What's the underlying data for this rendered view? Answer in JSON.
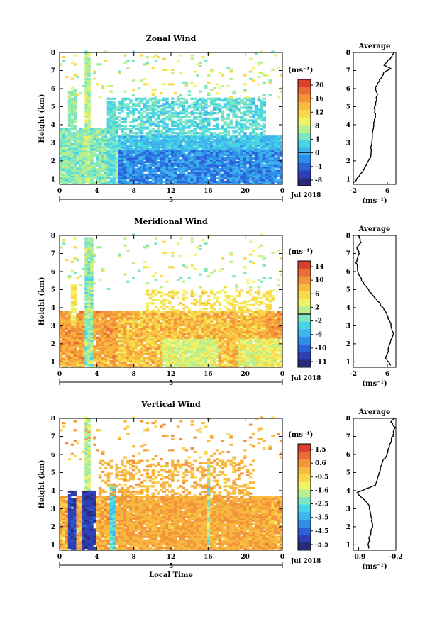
{
  "chart_data": [
    {
      "type": "heatmap",
      "title": "Zonal Wind",
      "ylabel": "Height (km)",
      "xlabel": "",
      "date_label": "Jul 2018",
      "day_label": "5",
      "x_ticks": [
        "0",
        "4",
        "8",
        "12",
        "16",
        "20",
        "0"
      ],
      "y_ticks": [
        "1",
        "2",
        "3",
        "4",
        "5",
        "6",
        "7",
        "8"
      ],
      "xlim": [
        0,
        24
      ],
      "ylim": [
        0.7,
        8
      ],
      "colorbar": {
        "unit": "(ms⁻¹)",
        "ticks": [
          "20",
          "16",
          "12",
          "8",
          "4",
          "0",
          "-4",
          "-8"
        ],
        "range": [
          -10,
          22
        ],
        "zero_line": 0
      },
      "average_profile": {
        "title": "Average",
        "xlabel": "(ms⁻¹)",
        "x_ticks": [
          "-2",
          "6"
        ],
        "xlim": [
          -2,
          8
        ],
        "points": [
          [
            -1.8,
            0.8
          ],
          [
            0.5,
            1.5
          ],
          [
            2.0,
            2.2
          ],
          [
            2.3,
            3.0
          ],
          [
            2.6,
            3.8
          ],
          [
            3.2,
            4.4
          ],
          [
            3.0,
            5.0
          ],
          [
            3.6,
            5.6
          ],
          [
            3.3,
            6.1
          ],
          [
            4.2,
            6.5
          ],
          [
            5.3,
            6.9
          ],
          [
            6.8,
            7.1
          ],
          [
            5.2,
            7.3
          ],
          [
            6.4,
            7.6
          ],
          [
            7.6,
            8.0
          ]
        ]
      }
    },
    {
      "type": "heatmap",
      "title": "Meridional Wind",
      "ylabel": "Height (km)",
      "xlabel": "",
      "date_label": "Jul 2018",
      "day_label": "5",
      "x_ticks": [
        "0",
        "4",
        "8",
        "12",
        "16",
        "20",
        "0"
      ],
      "y_ticks": [
        "1",
        "2",
        "3",
        "4",
        "5",
        "6",
        "7",
        "8"
      ],
      "xlim": [
        0,
        24
      ],
      "ylim": [
        0.7,
        8
      ],
      "colorbar": {
        "unit": "(ms⁻¹)",
        "ticks": [
          "14",
          "10",
          "6",
          "2",
          "-2",
          "-6",
          "-10",
          "-14"
        ],
        "range": [
          -16,
          16
        ],
        "zero_line": 0
      },
      "average_profile": {
        "title": "Average",
        "xlabel": "(ms⁻¹)",
        "x_ticks": [
          "-2",
          "6"
        ],
        "xlim": [
          -2,
          8
        ],
        "points": [
          [
            6.8,
            0.8
          ],
          [
            5.6,
            1.2
          ],
          [
            6.4,
            1.8
          ],
          [
            7.4,
            2.6
          ],
          [
            6.6,
            3.2
          ],
          [
            5.6,
            3.8
          ],
          [
            4.0,
            4.3
          ],
          [
            2.2,
            4.8
          ],
          [
            0.2,
            5.4
          ],
          [
            -1.0,
            6.0
          ],
          [
            -1.3,
            6.5
          ],
          [
            -0.6,
            7.0
          ],
          [
            -1.2,
            7.3
          ],
          [
            -0.2,
            7.6
          ],
          [
            -0.8,
            8.0
          ]
        ]
      }
    },
    {
      "type": "heatmap",
      "title": "Vertical Wind",
      "ylabel": "Height (km)",
      "xlabel": "Local Time",
      "date_label": "Jul 2018",
      "day_label": "5",
      "x_ticks": [
        "0",
        "4",
        "8",
        "12",
        "16",
        "20",
        "0"
      ],
      "y_ticks": [
        "1",
        "2",
        "3",
        "4",
        "5",
        "6",
        "7",
        "8"
      ],
      "xlim": [
        0,
        24
      ],
      "ylim": [
        0.7,
        8
      ],
      "colorbar": {
        "unit": "(ms⁻¹)",
        "ticks": [
          "1.5",
          "0.6",
          "-0.5",
          "-1.6",
          "-2.5",
          "-3.5",
          "-4.5",
          "-5.5"
        ],
        "range": [
          -6,
          2
        ]
      },
      "average_profile": {
        "title": "Average",
        "xlabel": "(ms⁻¹)",
        "x_ticks": [
          "-0.9",
          "-0.2"
        ],
        "xlim": [
          -1.0,
          -0.2
        ],
        "points": [
          [
            -0.72,
            0.8
          ],
          [
            -0.7,
            1.4
          ],
          [
            -0.64,
            2.0
          ],
          [
            -0.66,
            2.6
          ],
          [
            -0.7,
            3.2
          ],
          [
            -0.93,
            3.9
          ],
          [
            -0.58,
            4.3
          ],
          [
            -0.52,
            5.0
          ],
          [
            -0.45,
            5.6
          ],
          [
            -0.37,
            6.0
          ],
          [
            -0.32,
            6.5
          ],
          [
            -0.26,
            7.0
          ],
          [
            -0.22,
            7.5
          ],
          [
            -0.3,
            7.8
          ],
          [
            -0.22,
            8.0
          ]
        ]
      }
    }
  ]
}
